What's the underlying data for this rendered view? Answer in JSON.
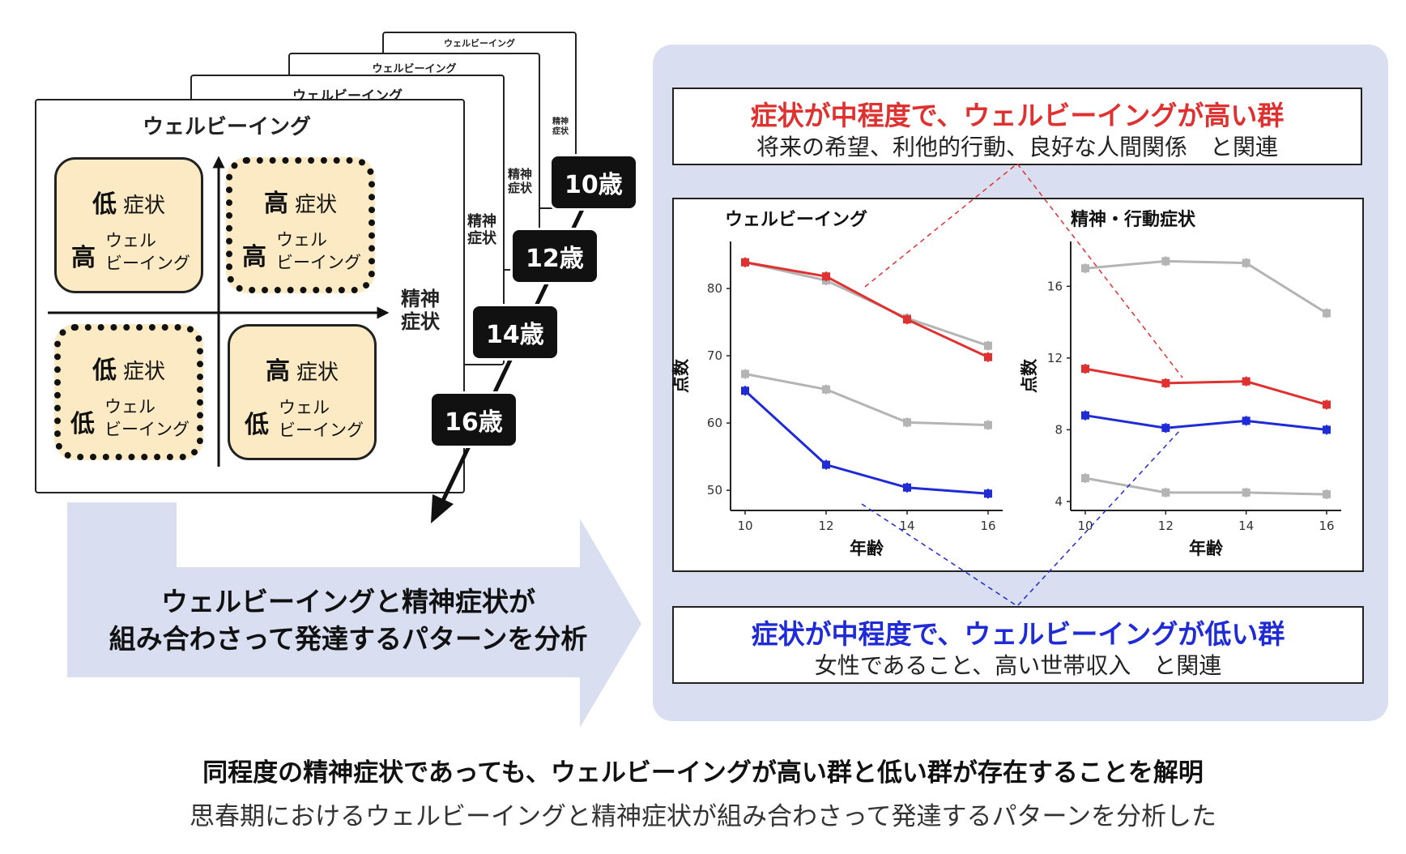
{
  "stacked_pages": {
    "title": "ウェルビーイング",
    "side_label": "精神\n症状"
  },
  "front_card": {
    "title": "ウェルビーイング",
    "x_axis_label": "精神\n症状",
    "quadrants": {
      "top_left": {
        "symptom_level": "低",
        "symptom_word": "症状",
        "wb_level": "高",
        "wb_word": "ウェル\nビーイング"
      },
      "top_right": {
        "symptom_level": "高",
        "symptom_word": "症状",
        "wb_level": "高",
        "wb_word": "ウェル\nビーイング"
      },
      "bottom_left": {
        "symptom_level": "低",
        "symptom_word": "症状",
        "wb_level": "低",
        "wb_word": "ウェル\nビーイング"
      },
      "bottom_right": {
        "symptom_level": "高",
        "symptom_word": "症状",
        "wb_level": "低",
        "wb_word": "ウェル\nビーイング"
      }
    }
  },
  "ages": [
    "10歳",
    "12歳",
    "14歳",
    "16歳"
  ],
  "big_arrow_text": {
    "line1": "ウェルビーイングと精神症状が",
    "line2": "組み合わさって発達するパターンを分析"
  },
  "callout_high": {
    "title": "症状が中程度で、ウェルビーイングが高い群",
    "subtitle": "将来の希望、利他的行動、良好な人間関係　と関連",
    "color": "#e03131"
  },
  "callout_low": {
    "title": "症状が中程度で、ウェルビーイングが低い群",
    "subtitle": "女性であること、高い世帯収入　と関連",
    "color": "#1f2bd6"
  },
  "colors": {
    "red": "#e03131",
    "blue": "#1f2bd6",
    "gray": "#b4b4b4",
    "panel": "#d9dff0",
    "quad": "#fbeac3"
  },
  "chart_data": [
    {
      "type": "line",
      "title": "ウェルビーイング",
      "xlabel": "年齢",
      "ylabel": "点数",
      "x": [
        10,
        12,
        14,
        16
      ],
      "xticks": [
        "10",
        "12",
        "14",
        "16"
      ],
      "ylim": [
        47,
        87
      ],
      "yticks": [
        "50",
        "60",
        "70",
        "80"
      ],
      "yticks_values": [
        50,
        60,
        70,
        80
      ],
      "series": [
        {
          "color": "#b4b4b4",
          "values": [
            83.9,
            81.2,
            75.6,
            71.5
          ]
        },
        {
          "color": "#e03131",
          "values": [
            83.9,
            81.8,
            75.4,
            69.8
          ]
        },
        {
          "color": "#b4b4b4",
          "values": [
            67.3,
            65.0,
            60.1,
            59.7
          ]
        },
        {
          "color": "#1f2bd6",
          "values": [
            64.8,
            53.8,
            50.4,
            49.5
          ]
        }
      ]
    },
    {
      "type": "line",
      "title": "精神・行動症状",
      "xlabel": "年齢",
      "ylabel": "点数",
      "x": [
        10,
        12,
        14,
        16
      ],
      "xticks": [
        "10",
        "12",
        "14",
        "16"
      ],
      "ylim": [
        3.5,
        18.5
      ],
      "yticks": [
        "4",
        "8",
        "12",
        "16"
      ],
      "yticks_values": [
        4,
        8,
        12,
        16
      ],
      "series": [
        {
          "color": "#b4b4b4",
          "values": [
            17.0,
            17.4,
            17.3,
            14.5
          ]
        },
        {
          "color": "#e03131",
          "values": [
            11.4,
            10.6,
            10.7,
            9.4
          ]
        },
        {
          "color": "#1f2bd6",
          "values": [
            8.8,
            8.1,
            8.5,
            8.0
          ]
        },
        {
          "color": "#b4b4b4",
          "values": [
            5.3,
            4.5,
            4.5,
            4.4
          ]
        }
      ]
    }
  ],
  "caption": {
    "line1": "同程度の精神症状であっても、ウェルビーイングが高い群と低い群が存在することを解明",
    "line2": "思春期におけるウェルビーイングと精神症状が組み合わさって発達するパターンを分析した"
  }
}
